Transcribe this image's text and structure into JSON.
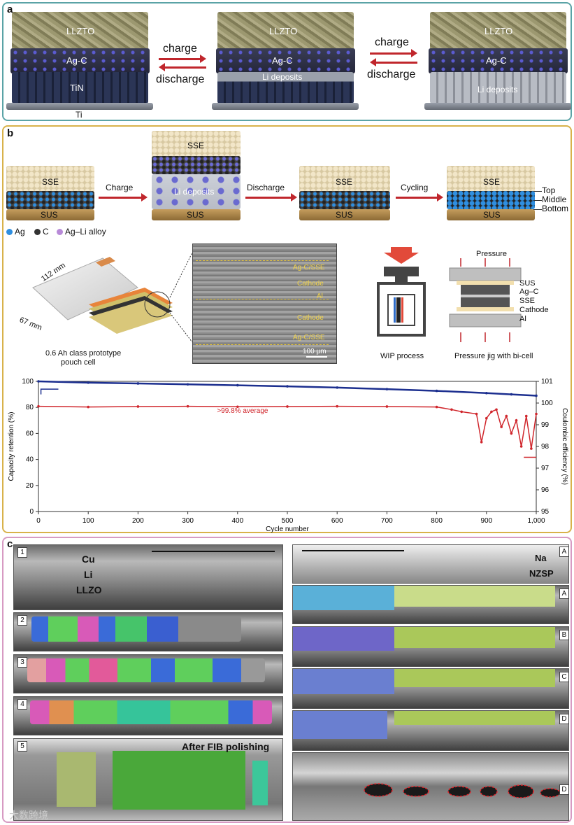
{
  "panel_a": {
    "label": "a",
    "stage1": {
      "top": "LLZTO",
      "mid": "Ag-C",
      "bottom": "TiN",
      "base": "Ti"
    },
    "stage2": {
      "top": "LLZTO",
      "mid": "Ag-C",
      "bottom": "Li deposits"
    },
    "stage3": {
      "top": "LLZTO",
      "mid": "Ag-C",
      "bottom": "Li deposits"
    },
    "arrow1": {
      "forward": "charge",
      "back": "discharge"
    },
    "arrow2": {
      "forward": "charge",
      "back": "discharge"
    }
  },
  "panel_b": {
    "label": "b",
    "cells": {
      "c1": {
        "top": "SSE",
        "bottom": "SUS"
      },
      "c2": {
        "top": "SSE",
        "mid": "Li deposits",
        "bottom": "SUS"
      },
      "c3": {
        "top": "SSE",
        "bottom": "SUS"
      },
      "c4": {
        "top": "SSE",
        "bottom": "SUS",
        "layers": [
          "Top",
          "Middle",
          "Bottom"
        ]
      }
    },
    "steps": [
      "Charge",
      "Discharge",
      "Cycling"
    ],
    "legend": [
      {
        "label": "Ag",
        "color": "#2f8fe0"
      },
      {
        "label": "C",
        "color": "#333333"
      },
      {
        "label": "Ag–Li alloy",
        "color": "#b88ad8"
      }
    ],
    "pouch": {
      "len": "112 mm",
      "width": "67 mm",
      "caption_line1": "0.6 Ah class prototype",
      "caption_line2": "pouch cell"
    },
    "crosssection": {
      "labels": [
        "Ag-C/SSE",
        "Cathode",
        "Al",
        "Cathode",
        "Ag-C/SSE"
      ],
      "scale": "100 μm"
    },
    "wip": {
      "caption": "WIP process"
    },
    "jig": {
      "top": "Pressure",
      "layers": [
        "SUS",
        "Ag–C",
        "SSE",
        "Cathode",
        "Al"
      ],
      "caption": "Pressure jig with bi-cell"
    }
  },
  "chart_data": {
    "type": "scatter",
    "xlabel": "Cycle number",
    "ylabel": "Capacity retention (%)",
    "y2label": "Coulombic efficiency (%)",
    "xlim": [
      0,
      1000
    ],
    "ylim": [
      0,
      100
    ],
    "y2lim": [
      95,
      101
    ],
    "xticks": [
      "0",
      "100",
      "200",
      "300",
      "400",
      "500",
      "600",
      "700",
      "800",
      "900",
      "1,000"
    ],
    "yticks": [
      "0",
      "20",
      "40",
      "60",
      "80",
      "100"
    ],
    "y2ticks": [
      "95",
      "96",
      "97",
      "98",
      "99",
      "100",
      "101"
    ],
    "annotation": ">99.8% average",
    "series": [
      {
        "name": "",
        "axis": "left",
        "color": "#1c2f8f",
        "x": [
          0,
          100,
          200,
          300,
          400,
          500,
          600,
          700,
          800,
          900,
          950,
          1000
        ],
        "y": [
          100,
          99,
          98.4,
          97.7,
          97,
          96.2,
          95.2,
          94,
          92.7,
          91,
          90,
          89
        ]
      },
      {
        "name": "",
        "axis": "right",
        "color": "#d0262c",
        "x": [
          0,
          100,
          200,
          300,
          400,
          500,
          600,
          700,
          800,
          830,
          850,
          880,
          890,
          900,
          910,
          920,
          930,
          940,
          950,
          960,
          970,
          980,
          990,
          1000
        ],
        "y": [
          99.85,
          99.82,
          99.84,
          99.85,
          99.83,
          99.84,
          99.85,
          99.84,
          99.82,
          99.7,
          99.6,
          99.5,
          98.2,
          99.3,
          99.6,
          99.7,
          98.9,
          99.4,
          98.6,
          99.2,
          98.0,
          99.4,
          97.9,
          99.5
        ]
      }
    ]
  },
  "panel_c": {
    "label": "c",
    "left": {
      "rows": [
        "1",
        "2",
        "3",
        "4",
        "5"
      ],
      "row1_labels": [
        "Cu",
        "Li",
        "LLZO"
      ],
      "row5_caption": "After FIB polishing"
    },
    "right": {
      "tags": [
        "A",
        "A",
        "B",
        "C",
        "D",
        "D"
      ],
      "row1_labels": [
        "Na",
        "NZSP"
      ]
    },
    "watermark": "大数跨境"
  }
}
